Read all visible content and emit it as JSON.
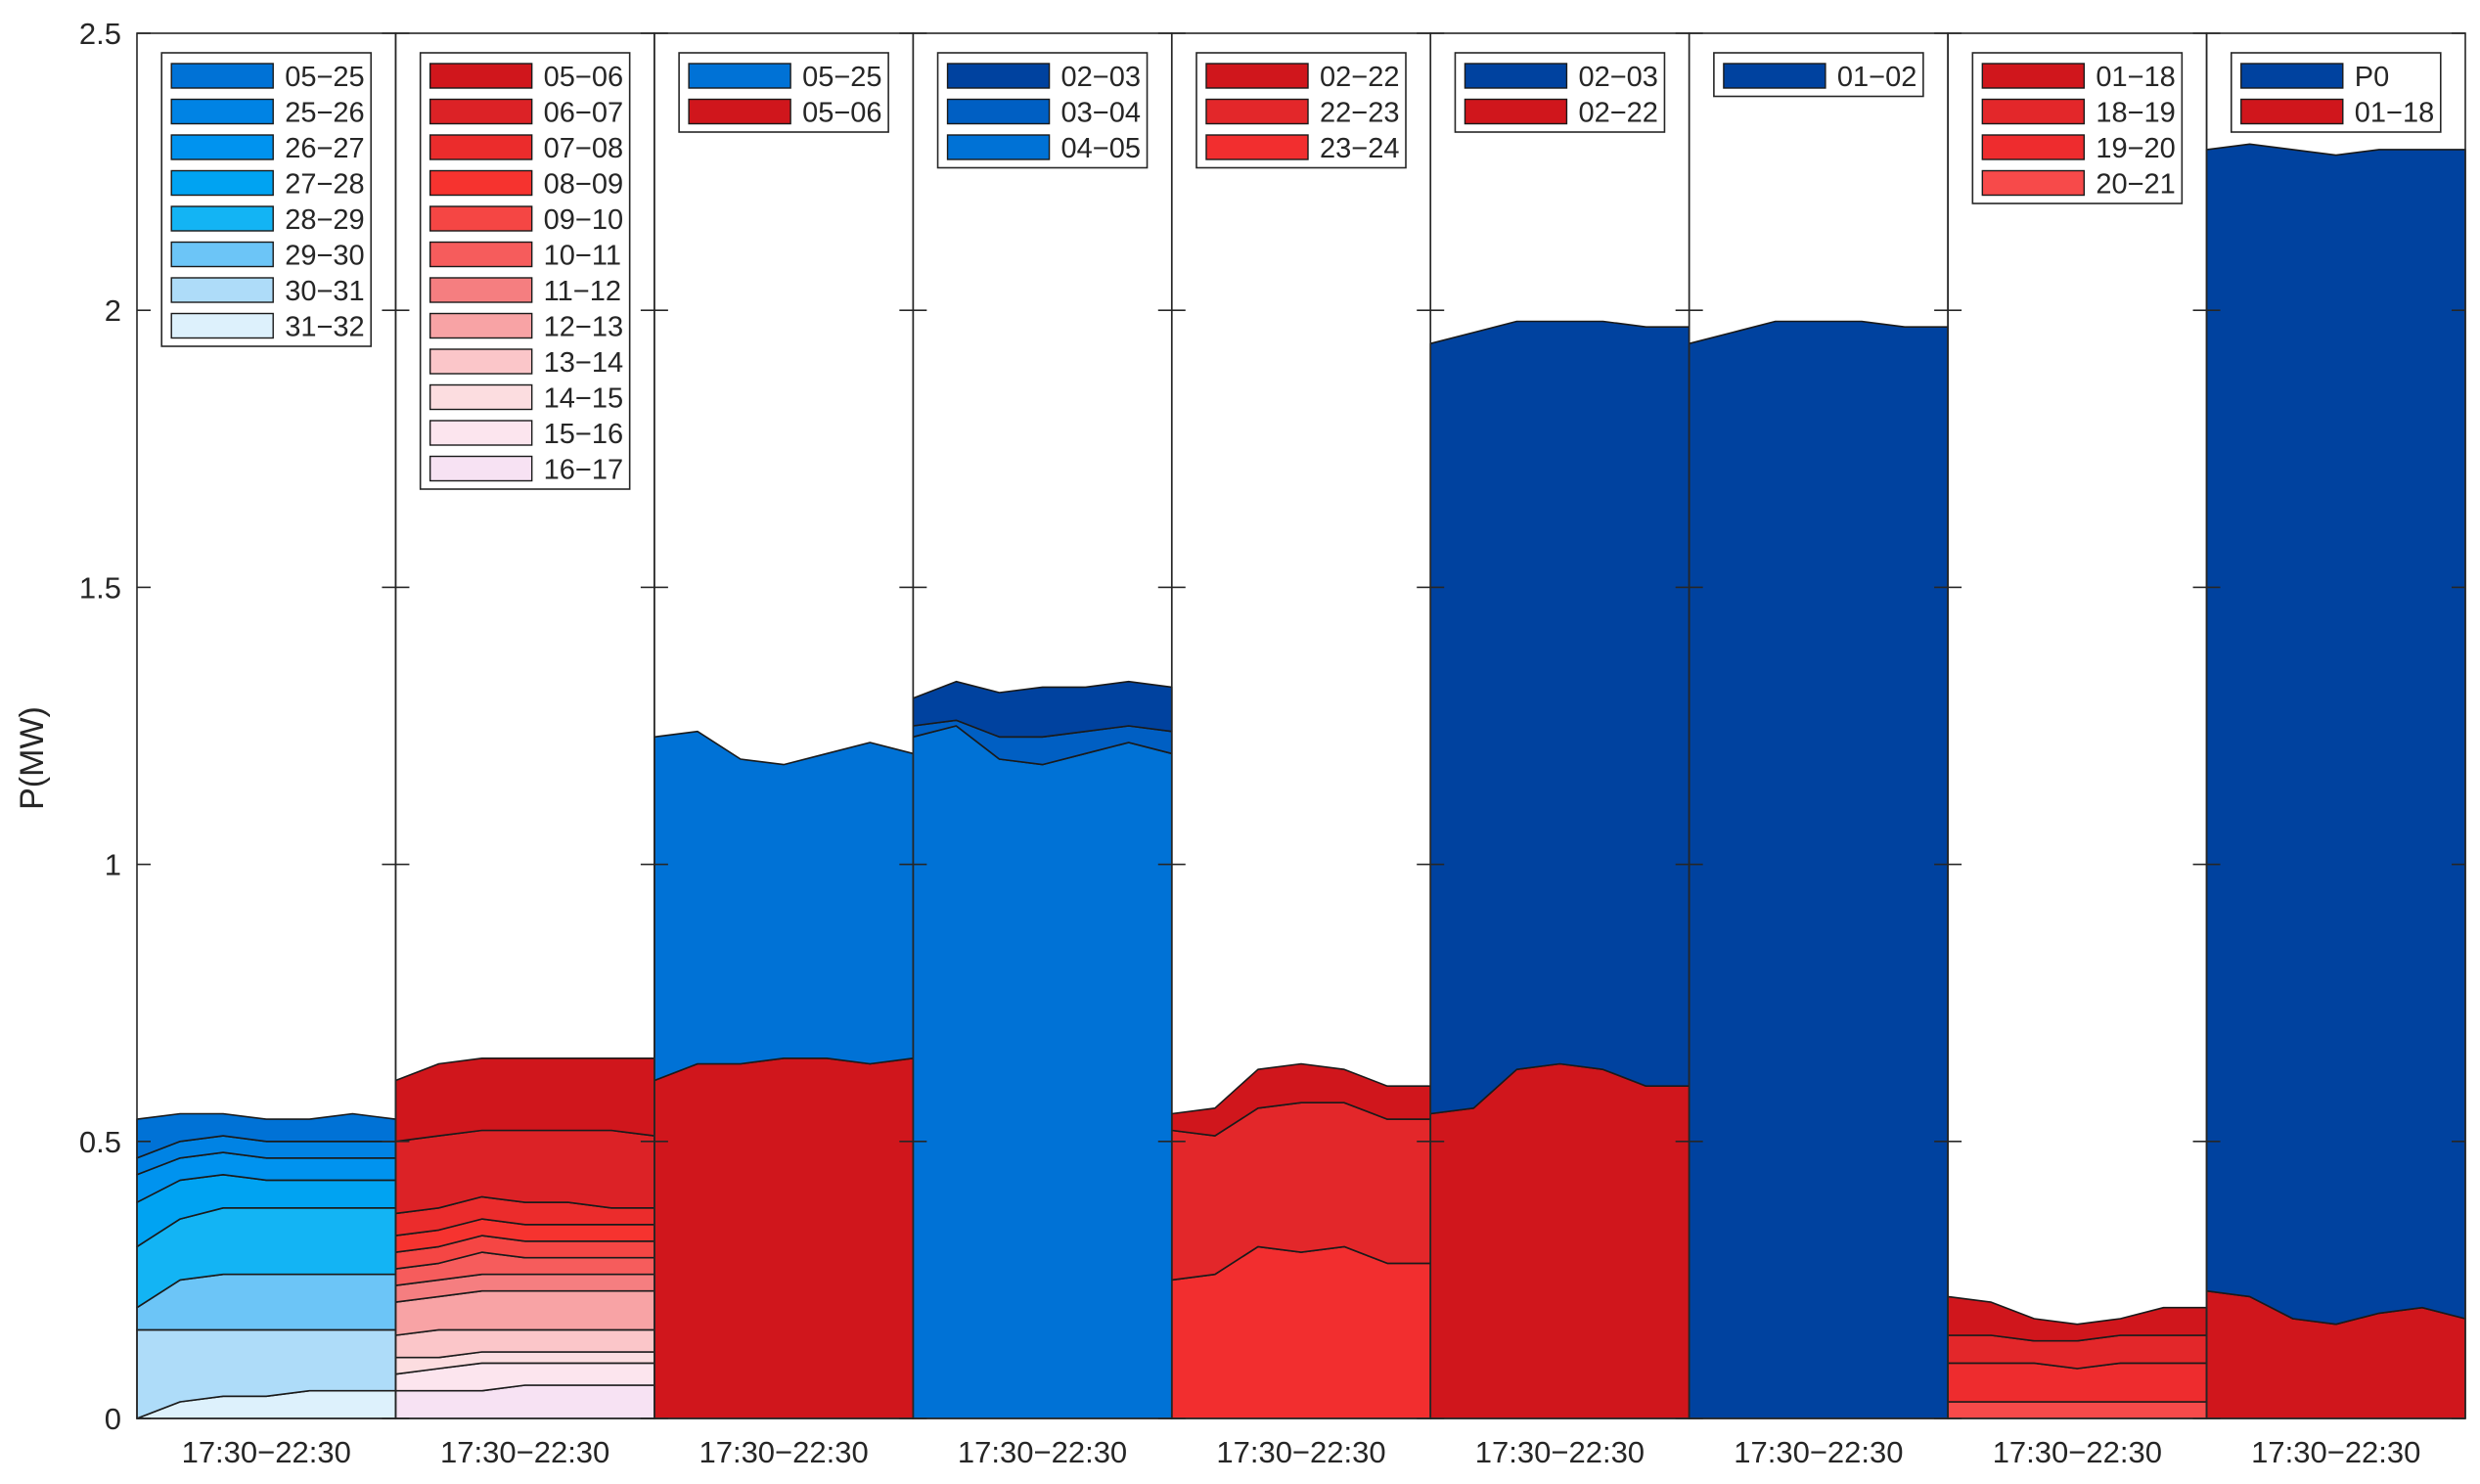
{
  "chart_data": {
    "type": "area",
    "title": "",
    "ylabel": "P(MW)",
    "xlabel": "",
    "ylim": [
      0,
      2.5
    ],
    "yticks": [
      "0",
      "0.5",
      "1",
      "1.5",
      "2",
      "2.5"
    ],
    "grid": false,
    "panels": [
      {
        "xlabel": "17:30−22:30",
        "legend": [
          "05−25",
          "25−26",
          "26−27",
          "27−28",
          "28−29",
          "29−30",
          "30−31",
          "31−32"
        ],
        "legend_colors": [
          "#0072D6",
          "#0083E4",
          "#0093EF",
          "#00A3F2",
          "#13B4F4",
          "#6CC5F7",
          "#AEDCF9",
          "#DDF1FC"
        ],
        "series": [
          {
            "name": "31−32",
            "color": "#DDF1FC",
            "values": [
              0.0,
              0.03,
              0.04,
              0.04,
              0.05,
              0.05,
              0.05
            ]
          },
          {
            "name": "30−31",
            "color": "#AEDCF9",
            "values": [
              0.16,
              0.16,
              0.16,
              0.16,
              0.16,
              0.16,
              0.16
            ]
          },
          {
            "name": "29−30",
            "color": "#6CC5F7",
            "values": [
              0.2,
              0.25,
              0.26,
              0.26,
              0.26,
              0.26,
              0.26
            ]
          },
          {
            "name": "28−29",
            "color": "#13B4F4",
            "values": [
              0.31,
              0.36,
              0.38,
              0.38,
              0.38,
              0.38,
              0.38
            ]
          },
          {
            "name": "27−28",
            "color": "#00A3F2",
            "values": [
              0.39,
              0.43,
              0.44,
              0.43,
              0.43,
              0.43,
              0.43
            ]
          },
          {
            "name": "26−27",
            "color": "#0093EF",
            "values": [
              0.44,
              0.47,
              0.48,
              0.47,
              0.47,
              0.47,
              0.47
            ]
          },
          {
            "name": "25−26",
            "color": "#0083E4",
            "values": [
              0.47,
              0.5,
              0.51,
              0.5,
              0.5,
              0.5,
              0.5
            ]
          },
          {
            "name": "05−25",
            "color": "#0072D6",
            "values": [
              0.54,
              0.55,
              0.55,
              0.54,
              0.54,
              0.55,
              0.54
            ]
          }
        ]
      },
      {
        "xlabel": "17:30−22:30",
        "legend": [
          "05−06",
          "06−07",
          "07−08",
          "08−09",
          "09−10",
          "10−11",
          "11−12",
          "12−13",
          "13−14",
          "14−15",
          "15−16",
          "16−17"
        ],
        "legend_colors": [
          "#D0161C",
          "#DC2226",
          "#EB2C2C",
          "#F6332F",
          "#F54644",
          "#F65C5C",
          "#F57E80",
          "#F8A3A5",
          "#FBC6C9",
          "#FCDDE0",
          "#FCE5EE",
          "#F7E2F3"
        ],
        "series": [
          {
            "name": "16−17",
            "color": "#F7E2F3",
            "values": [
              0.05,
              0.05,
              0.05,
              0.06,
              0.06,
              0.06,
              0.06
            ]
          },
          {
            "name": "15−16",
            "color": "#FCE5EE",
            "values": [
              0.08,
              0.09,
              0.1,
              0.1,
              0.1,
              0.1,
              0.1
            ]
          },
          {
            "name": "14−15",
            "color": "#FCDDE0",
            "values": [
              0.11,
              0.11,
              0.12,
              0.12,
              0.12,
              0.12,
              0.12
            ]
          },
          {
            "name": "13−14",
            "color": "#FBC6C9",
            "values": [
              0.15,
              0.16,
              0.16,
              0.16,
              0.16,
              0.16,
              0.16
            ]
          },
          {
            "name": "12−13",
            "color": "#F8A3A5",
            "values": [
              0.21,
              0.22,
              0.23,
              0.23,
              0.23,
              0.23,
              0.23
            ]
          },
          {
            "name": "11−12",
            "color": "#F57E80",
            "values": [
              0.24,
              0.25,
              0.26,
              0.26,
              0.26,
              0.26,
              0.26
            ]
          },
          {
            "name": "10−11",
            "color": "#F65C5C",
            "values": [
              0.27,
              0.28,
              0.3,
              0.29,
              0.29,
              0.29,
              0.29
            ]
          },
          {
            "name": "09−10",
            "color": "#F54644",
            "values": [
              0.3,
              0.31,
              0.33,
              0.32,
              0.32,
              0.32,
              0.32
            ]
          },
          {
            "name": "08−09",
            "color": "#F6332F",
            "values": [
              0.33,
              0.34,
              0.36,
              0.35,
              0.35,
              0.35,
              0.35
            ]
          },
          {
            "name": "07−08",
            "color": "#EB2C2C",
            "values": [
              0.37,
              0.38,
              0.4,
              0.39,
              0.39,
              0.38,
              0.38
            ]
          },
          {
            "name": "06−07",
            "color": "#DC2226",
            "values": [
              0.5,
              0.51,
              0.52,
              0.52,
              0.52,
              0.52,
              0.51
            ]
          },
          {
            "name": "05−06",
            "color": "#D0161C",
            "values": [
              0.61,
              0.64,
              0.65,
              0.65,
              0.65,
              0.65,
              0.65
            ]
          }
        ]
      },
      {
        "xlabel": "17:30−22:30",
        "legend": [
          "05−25",
          "05−06"
        ],
        "legend_colors": [
          "#0072D6",
          "#D0161C"
        ],
        "series": [
          {
            "name": "05−06",
            "color": "#D0161C",
            "values": [
              0.61,
              0.64,
              0.64,
              0.65,
              0.65,
              0.64,
              0.65
            ]
          },
          {
            "name": "05−25",
            "color": "#0072D6",
            "values": [
              1.23,
              1.24,
              1.19,
              1.18,
              1.2,
              1.22,
              1.2
            ]
          }
        ]
      },
      {
        "xlabel": "17:30−22:30",
        "legend": [
          "02−03",
          "03−04",
          "04−05"
        ],
        "legend_colors": [
          "#00429F",
          "#005FC3",
          "#0072D6"
        ],
        "series": [
          {
            "name": "04−05",
            "color": "#0072D6",
            "values": [
              1.23,
              1.25,
              1.19,
              1.18,
              1.2,
              1.22,
              1.2
            ]
          },
          {
            "name": "03−04",
            "color": "#005FC3",
            "values": [
              1.25,
              1.26,
              1.23,
              1.23,
              1.24,
              1.25,
              1.24
            ]
          },
          {
            "name": "02−03",
            "color": "#00429F",
            "values": [
              1.3,
              1.33,
              1.31,
              1.32,
              1.32,
              1.33,
              1.32
            ]
          }
        ]
      },
      {
        "xlabel": "17:30−22:30",
        "legend": [
          "02−22",
          "22−23",
          "23−24"
        ],
        "legend_colors": [
          "#D0161C",
          "#E3272A",
          "#F22E2F"
        ],
        "series": [
          {
            "name": "23−24",
            "color": "#F22E2F",
            "values": [
              0.25,
              0.26,
              0.31,
              0.3,
              0.31,
              0.28,
              0.28
            ]
          },
          {
            "name": "22−23",
            "color": "#E3272A",
            "values": [
              0.52,
              0.51,
              0.56,
              0.57,
              0.57,
              0.54,
              0.54
            ]
          },
          {
            "name": "02−22",
            "color": "#D0161C",
            "values": [
              0.55,
              0.56,
              0.63,
              0.64,
              0.63,
              0.6,
              0.6
            ]
          }
        ]
      },
      {
        "xlabel": "17:30−22:30",
        "legend": [
          "02−03",
          "02−22"
        ],
        "legend_colors": [
          "#00429F",
          "#D0161C"
        ],
        "series": [
          {
            "name": "02−22",
            "color": "#D0161C",
            "values": [
              0.55,
              0.56,
              0.63,
              0.64,
              0.63,
              0.6,
              0.6
            ]
          },
          {
            "name": "02−03",
            "color": "#00429F",
            "values": [
              1.94,
              1.96,
              1.98,
              1.98,
              1.98,
              1.97,
              1.97
            ]
          }
        ]
      },
      {
        "xlabel": "17:30−22:30",
        "legend": [
          "01−02"
        ],
        "legend_colors": [
          "#00429F"
        ],
        "series": [
          {
            "name": "01−02",
            "color": "#00429F",
            "values": [
              1.94,
              1.96,
              1.98,
              1.98,
              1.98,
              1.97,
              1.97
            ]
          }
        ]
      },
      {
        "xlabel": "17:30−22:30",
        "legend": [
          "01−18",
          "18−19",
          "19−20",
          "20−21"
        ],
        "legend_colors": [
          "#D0161C",
          "#E3272A",
          "#EE2C2E",
          "#F74A4A"
        ],
        "series": [
          {
            "name": "20−21",
            "color": "#F74A4A",
            "values": [
              0.03,
              0.03,
              0.03,
              0.03,
              0.03,
              0.03,
              0.03
            ]
          },
          {
            "name": "19−20",
            "color": "#EE2C2E",
            "values": [
              0.1,
              0.1,
              0.1,
              0.09,
              0.1,
              0.1,
              0.1
            ]
          },
          {
            "name": "18−19",
            "color": "#E3272A",
            "values": [
              0.15,
              0.15,
              0.14,
              0.14,
              0.15,
              0.15,
              0.15
            ]
          },
          {
            "name": "01−18",
            "color": "#D0161C",
            "values": [
              0.22,
              0.21,
              0.18,
              0.17,
              0.18,
              0.2,
              0.2
            ]
          }
        ]
      },
      {
        "xlabel": "17:30−22:30",
        "legend": [
          "P0",
          "01−18"
        ],
        "legend_colors": [
          "#00429F",
          "#D0161C"
        ],
        "series": [
          {
            "name": "01−18",
            "color": "#D0161C",
            "values": [
              0.23,
              0.22,
              0.18,
              0.17,
              0.19,
              0.2,
              0.18
            ]
          },
          {
            "name": "P0",
            "color": "#00429F",
            "values": [
              2.29,
              2.3,
              2.29,
              2.28,
              2.29,
              2.29,
              2.29
            ]
          }
        ]
      }
    ]
  }
}
